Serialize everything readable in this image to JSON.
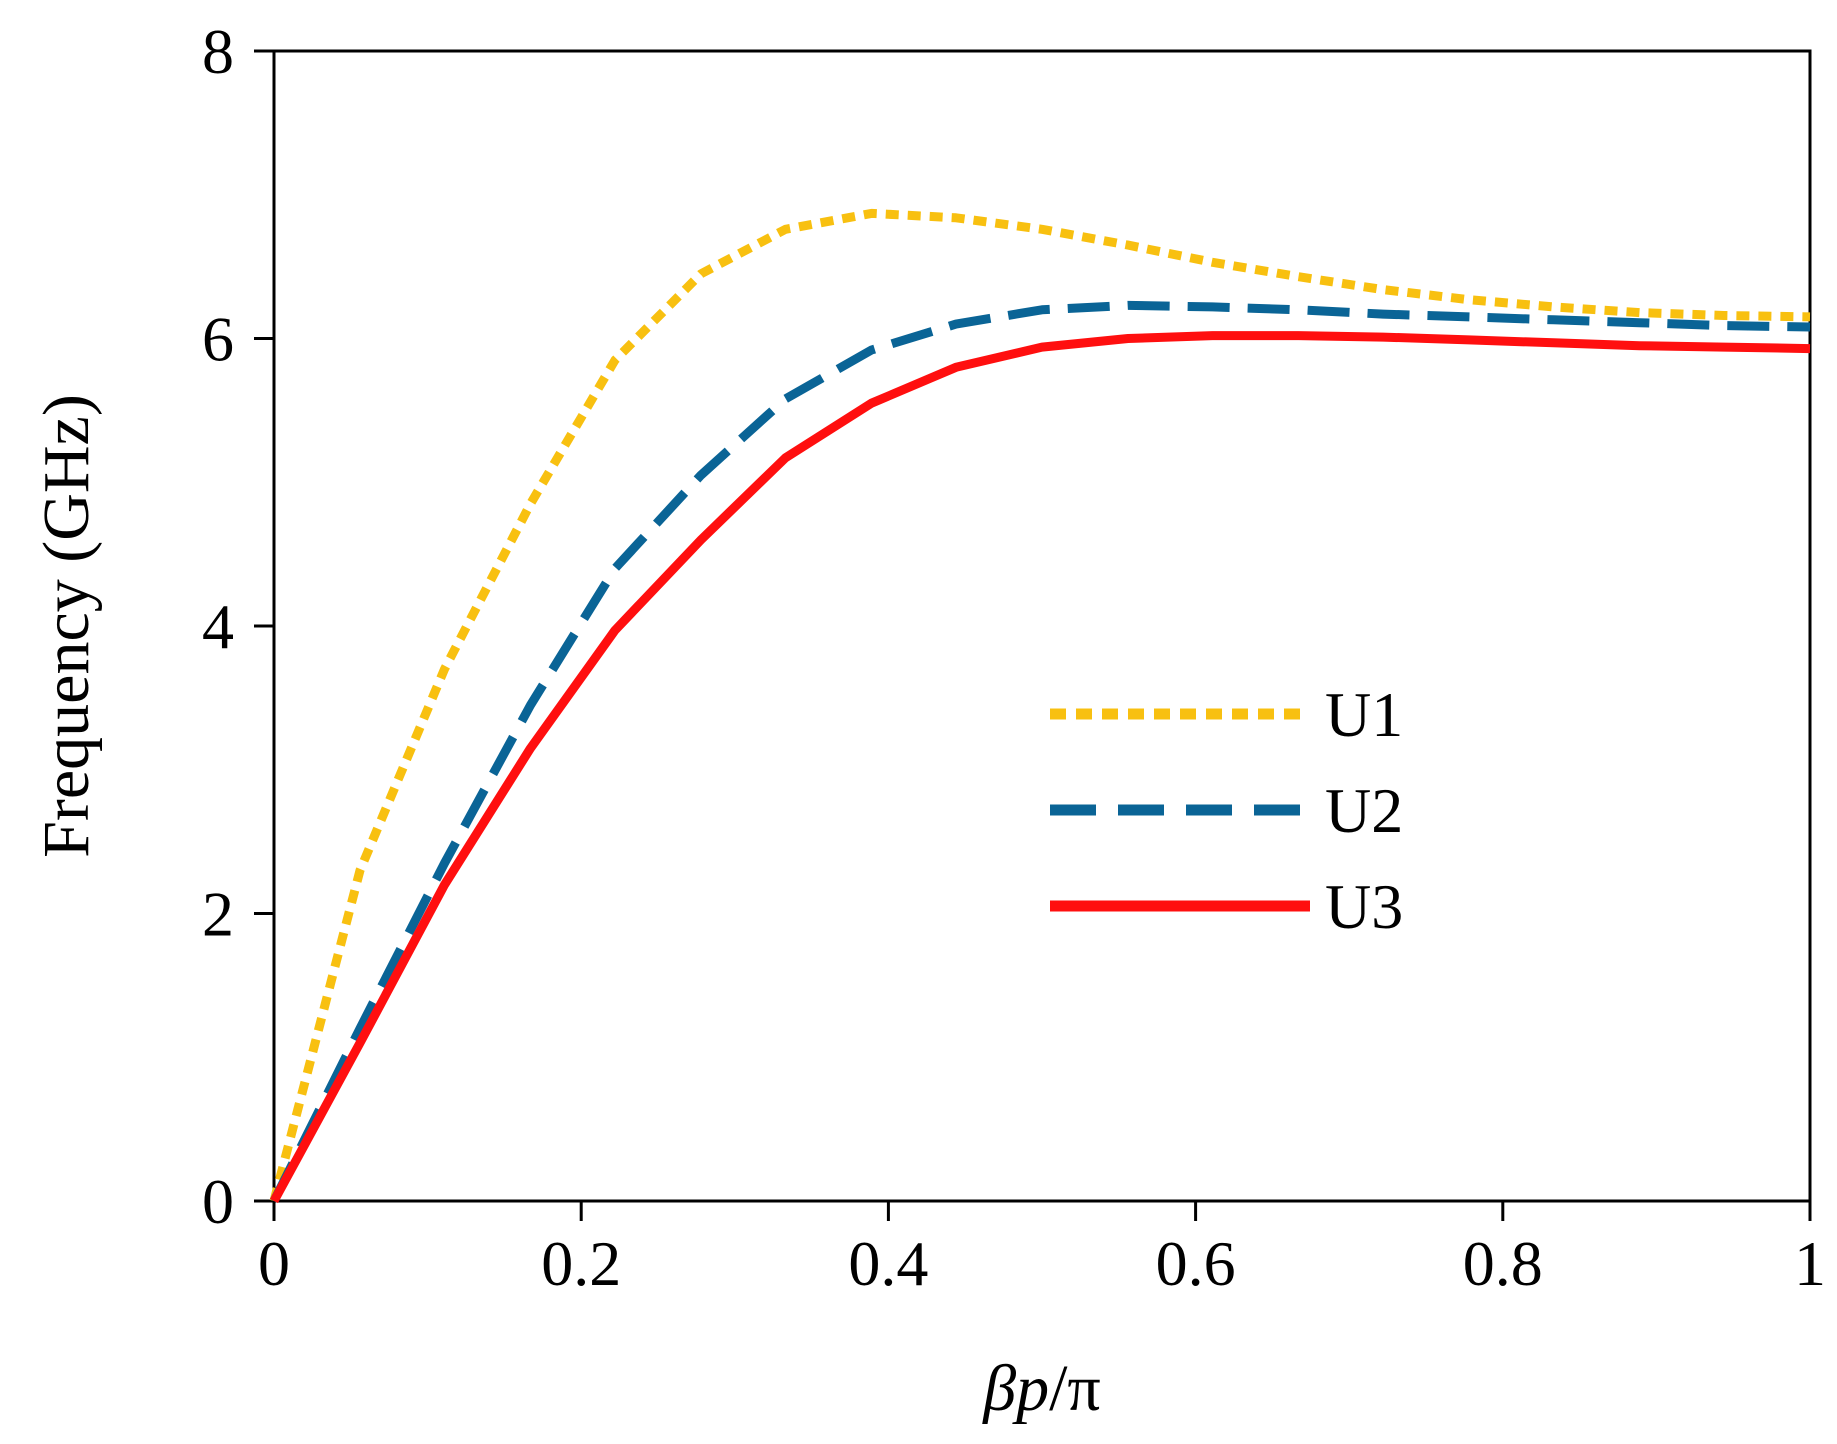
{
  "chart_data": {
    "type": "line",
    "title": "",
    "xlabel": {
      "beta": "β",
      "p": "p",
      "rest": "/π"
    },
    "ylabel": "Frequency (GHz)",
    "xlim": [
      0,
      1
    ],
    "ylim": [
      0,
      8
    ],
    "xticks": [
      0,
      0.2,
      0.4,
      0.6,
      0.8,
      1
    ],
    "xtick_labels": [
      "0",
      "0.2",
      "0.4",
      "0.6",
      "0.8",
      "1"
    ],
    "yticks": [
      0,
      2,
      4,
      6,
      8
    ],
    "ytick_labels": [
      "0",
      "2",
      "4",
      "6",
      "8"
    ],
    "grid": false,
    "legend_position": "center-right",
    "series": [
      {
        "name": "U1",
        "color": "#f8c010",
        "style": "dotted",
        "x": [
          0,
          0.056,
          0.111,
          0.167,
          0.222,
          0.278,
          0.333,
          0.389,
          0.444,
          0.5,
          0.556,
          0.611,
          0.667,
          0.722,
          0.778,
          0.833,
          0.889,
          0.944,
          1.0
        ],
        "y": [
          0,
          2.3,
          3.7,
          4.85,
          5.85,
          6.45,
          6.76,
          6.87,
          6.84,
          6.76,
          6.65,
          6.53,
          6.43,
          6.34,
          6.27,
          6.22,
          6.18,
          6.16,
          6.15
        ]
      },
      {
        "name": "U2",
        "color": "#0a6496",
        "style": "dashed",
        "x": [
          0,
          0.056,
          0.111,
          0.167,
          0.222,
          0.278,
          0.333,
          0.389,
          0.444,
          0.5,
          0.556,
          0.611,
          0.667,
          0.722,
          0.778,
          0.833,
          0.889,
          0.944,
          1.0
        ],
        "y": [
          0,
          1.2,
          2.35,
          3.45,
          4.4,
          5.05,
          5.58,
          5.92,
          6.1,
          6.2,
          6.23,
          6.22,
          6.2,
          6.17,
          6.15,
          6.13,
          6.11,
          6.09,
          6.08
        ]
      },
      {
        "name": "U3",
        "color": "#ff0f0f",
        "style": "solid",
        "x": [
          0,
          0.056,
          0.111,
          0.167,
          0.222,
          0.278,
          0.333,
          0.389,
          0.444,
          0.5,
          0.556,
          0.611,
          0.667,
          0.722,
          0.778,
          0.833,
          0.889,
          0.944,
          1.0
        ],
        "y": [
          0,
          1.1,
          2.2,
          3.15,
          3.97,
          4.6,
          5.17,
          5.55,
          5.8,
          5.94,
          6.0,
          6.02,
          6.02,
          6.01,
          5.99,
          5.97,
          5.95,
          5.94,
          5.93
        ]
      }
    ]
  }
}
